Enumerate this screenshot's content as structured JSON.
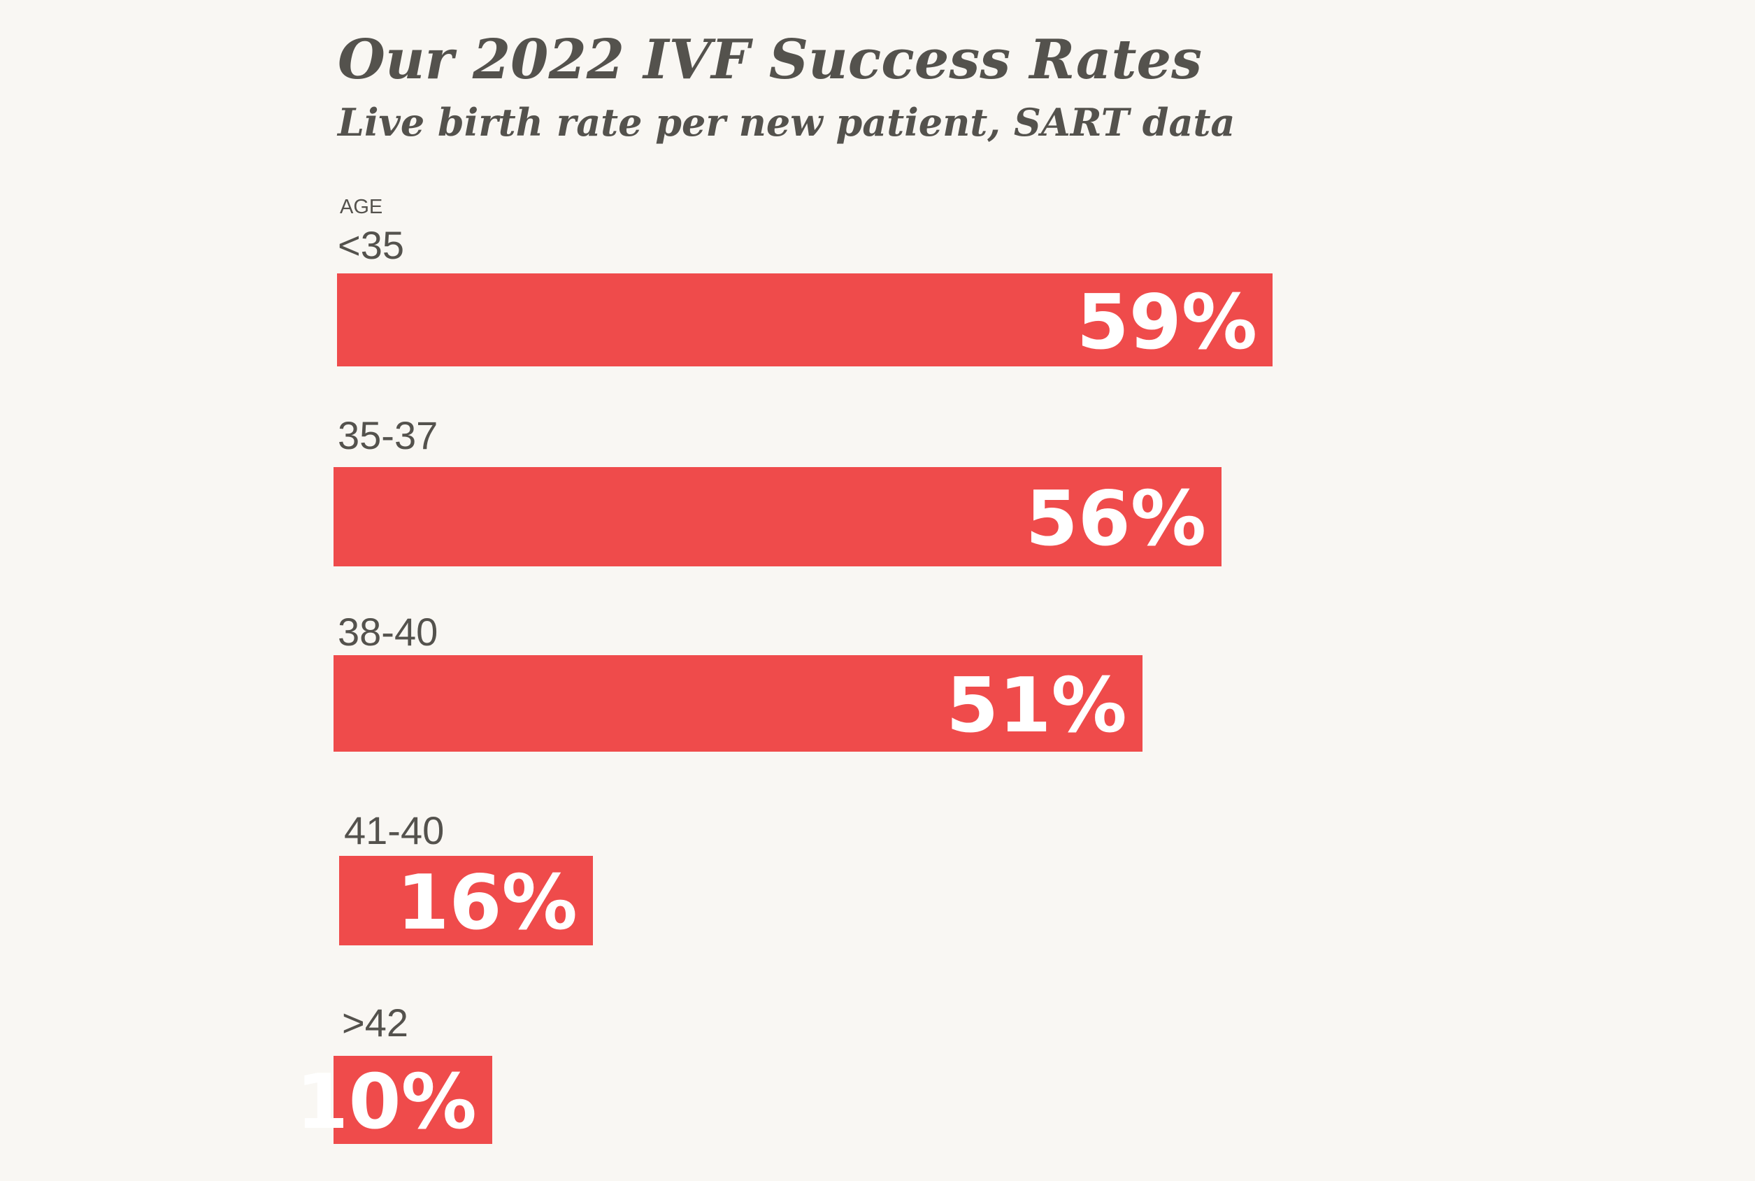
{
  "chart_data": {
    "type": "bar",
    "orientation": "horizontal",
    "title": "Our 2022 IVF Success Rates",
    "subtitle": "Live birth rate per new patient, SART data",
    "axis_label": "AGE",
    "categories": [
      "<35",
      "35-37",
      "38-40",
      "41-40",
      ">42"
    ],
    "values": [
      59,
      56,
      51,
      16,
      10
    ],
    "value_labels": [
      "59%",
      "56%",
      "51%",
      "16%",
      "10%"
    ],
    "unit": "%",
    "bar_color": "#ef4b4b",
    "value_label_color": "#ffffff",
    "grid": false,
    "legend": "none"
  }
}
